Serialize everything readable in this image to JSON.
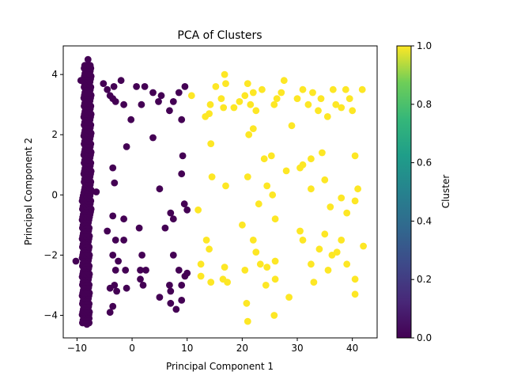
{
  "chart_data": {
    "type": "scatter",
    "title": "PCA of Clusters",
    "xlabel": "Principal Component 1",
    "ylabel": "Principal Component 2",
    "xlim": [
      -12.5,
      44.5
    ],
    "ylim": [
      -4.75,
      4.95
    ],
    "xticks": [
      -10,
      0,
      10,
      20,
      30,
      40
    ],
    "yticks": [
      -4,
      -2,
      0,
      2,
      4
    ],
    "grid": false,
    "colorbar": {
      "label": "Cluster",
      "colormap": "viridis",
      "range": [
        0.0,
        1.0
      ],
      "ticks": [
        "0.0",
        "0.2",
        "0.4",
        "0.6",
        "0.8",
        "1.0"
      ]
    },
    "series": [
      {
        "cluster": 0,
        "color": "#440154",
        "points": [
          [
            -10.2,
            -2.2
          ],
          [
            -9.3,
            3.8
          ],
          [
            -6.5,
            0.1
          ],
          [
            -5.2,
            3.7
          ],
          [
            -4.5,
            3.5
          ],
          [
            -4.0,
            3.3
          ],
          [
            -3.5,
            3.2
          ],
          [
            -3.3,
            3.6
          ],
          [
            -3.0,
            3.1
          ],
          [
            -2.0,
            3.8
          ],
          [
            -1.5,
            3.0
          ],
          [
            -1.2,
            -2.5
          ],
          [
            -0.2,
            2.5
          ],
          [
            0.8,
            3.6
          ],
          [
            1.7,
            3.0
          ],
          [
            2.3,
            3.6
          ],
          [
            3.8,
            3.4
          ],
          [
            4.8,
            3.1
          ],
          [
            5.3,
            3.3
          ],
          [
            6.8,
            2.8
          ],
          [
            7.5,
            3.1
          ],
          [
            8.5,
            3.4
          ],
          [
            9.0,
            2.5
          ],
          [
            9.6,
            3.6
          ],
          [
            -1.0,
            1.6
          ],
          [
            3.8,
            1.9
          ],
          [
            -3.5,
            0.9
          ],
          [
            -3.2,
            0.4
          ],
          [
            5.0,
            0.2
          ],
          [
            9.0,
            0.7
          ],
          [
            9.2,
            1.3
          ],
          [
            9.5,
            -0.3
          ],
          [
            10.0,
            -0.5
          ],
          [
            -3.5,
            -0.7
          ],
          [
            -1.5,
            -0.8
          ],
          [
            -4.5,
            -1.2
          ],
          [
            -3.0,
            -1.5
          ],
          [
            -1.5,
            -1.5
          ],
          [
            -3.5,
            -2.0
          ],
          [
            -2.5,
            -2.2
          ],
          [
            -3.0,
            -2.5
          ],
          [
            -4.0,
            -3.1
          ],
          [
            -3.2,
            -3.0
          ],
          [
            -2.8,
            -3.2
          ],
          [
            -1.0,
            -3.1
          ],
          [
            1.5,
            -2.5
          ],
          [
            2.5,
            -2.5
          ],
          [
            1.5,
            -2.8
          ],
          [
            2.0,
            -3.0
          ],
          [
            1.3,
            -1.1
          ],
          [
            1.8,
            -2.0
          ],
          [
            6.0,
            -1.1
          ],
          [
            7.0,
            -0.6
          ],
          [
            7.5,
            -0.8
          ],
          [
            7.5,
            -2.0
          ],
          [
            6.8,
            -3.0
          ],
          [
            7.0,
            -3.2
          ],
          [
            5.0,
            -3.4
          ],
          [
            7.0,
            -3.6
          ],
          [
            8.0,
            -3.8
          ],
          [
            9.0,
            -3.5
          ],
          [
            8.5,
            -2.5
          ],
          [
            9.0,
            -3.0
          ],
          [
            9.6,
            -2.7
          ],
          [
            10.0,
            -2.6
          ],
          [
            -3.5,
            -3.7
          ],
          [
            -4.0,
            -3.9
          ],
          [
            -8.0,
            4.5
          ],
          [
            -8.3,
            4.2
          ],
          [
            -7.6,
            4.3
          ],
          [
            -8.2,
            -4.3
          ],
          [
            -7.8,
            -4.1
          ],
          [
            -8.5,
            -4.0
          ]
        ]
      },
      {
        "cluster": 1,
        "color": "#fde725",
        "points": [
          [
            10.8,
            3.3
          ],
          [
            13.3,
            2.6
          ],
          [
            14.0,
            2.7
          ],
          [
            14.2,
            3.0
          ],
          [
            15.2,
            3.6
          ],
          [
            16.2,
            3.2
          ],
          [
            16.8,
            4.0
          ],
          [
            16.6,
            2.9
          ],
          [
            17.0,
            3.7
          ],
          [
            18.5,
            2.9
          ],
          [
            19.5,
            3.1
          ],
          [
            20.5,
            3.3
          ],
          [
            21.0,
            3.7
          ],
          [
            21.5,
            3.0
          ],
          [
            22.0,
            3.4
          ],
          [
            22.5,
            2.8
          ],
          [
            23.6,
            3.5
          ],
          [
            25.8,
            3.0
          ],
          [
            26.3,
            3.2
          ],
          [
            27.1,
            3.4
          ],
          [
            27.6,
            3.8
          ],
          [
            29.0,
            2.3
          ],
          [
            30.0,
            3.2
          ],
          [
            31.0,
            3.5
          ],
          [
            32.0,
            3.0
          ],
          [
            32.8,
            3.4
          ],
          [
            33.8,
            2.8
          ],
          [
            34.3,
            3.2
          ],
          [
            35.5,
            2.6
          ],
          [
            36.5,
            3.5
          ],
          [
            37.0,
            3.0
          ],
          [
            38.0,
            2.9
          ],
          [
            38.8,
            3.5
          ],
          [
            39.5,
            3.2
          ],
          [
            40.0,
            2.8
          ],
          [
            41.8,
            3.5
          ],
          [
            22.0,
            2.2
          ],
          [
            21.2,
            2.0
          ],
          [
            14.3,
            1.7
          ],
          [
            24.0,
            1.2
          ],
          [
            25.3,
            1.3
          ],
          [
            31.0,
            1.0
          ],
          [
            32.5,
            1.2
          ],
          [
            34.5,
            1.4
          ],
          [
            35.0,
            0.5
          ],
          [
            40.5,
            1.3
          ],
          [
            41.0,
            0.2
          ],
          [
            17.0,
            0.3
          ],
          [
            14.5,
            0.6
          ],
          [
            21.0,
            0.6
          ],
          [
            23.0,
            -0.3
          ],
          [
            24.5,
            0.3
          ],
          [
            25.5,
            0.0
          ],
          [
            26.0,
            -0.8
          ],
          [
            28.0,
            0.8
          ],
          [
            30.5,
            0.9
          ],
          [
            32.5,
            0.2
          ],
          [
            36.0,
            -0.4
          ],
          [
            38.0,
            -0.1
          ],
          [
            39.0,
            -0.6
          ],
          [
            40.5,
            -0.2
          ],
          [
            12.0,
            -0.5
          ],
          [
            13.5,
            -1.5
          ],
          [
            14.0,
            -1.8
          ],
          [
            16.8,
            -2.4
          ],
          [
            16.5,
            -2.8
          ],
          [
            17.3,
            -2.9
          ],
          [
            14.3,
            -2.9
          ],
          [
            12.5,
            -2.7
          ],
          [
            12.5,
            -2.3
          ],
          [
            20.0,
            -1.0
          ],
          [
            20.5,
            -2.5
          ],
          [
            22.0,
            -1.5
          ],
          [
            22.5,
            -1.9
          ],
          [
            23.3,
            -2.3
          ],
          [
            24.5,
            -2.4
          ],
          [
            24.3,
            -3.0
          ],
          [
            26.0,
            -2.8
          ],
          [
            26.0,
            -2.2
          ],
          [
            25.8,
            -4.0
          ],
          [
            28.5,
            -3.4
          ],
          [
            30.5,
            -1.2
          ],
          [
            31.0,
            -1.5
          ],
          [
            32.5,
            -2.3
          ],
          [
            33.0,
            -2.9
          ],
          [
            34.0,
            -1.8
          ],
          [
            35.0,
            -1.3
          ],
          [
            35.6,
            -2.5
          ],
          [
            36.3,
            -2.0
          ],
          [
            37.2,
            -1.9
          ],
          [
            38.0,
            -1.5
          ],
          [
            39.0,
            -2.3
          ],
          [
            40.5,
            -2.8
          ],
          [
            40.5,
            -3.3
          ],
          [
            42.0,
            -1.7
          ],
          [
            21.0,
            -4.2
          ],
          [
            20.8,
            -3.6
          ]
        ]
      }
    ]
  }
}
